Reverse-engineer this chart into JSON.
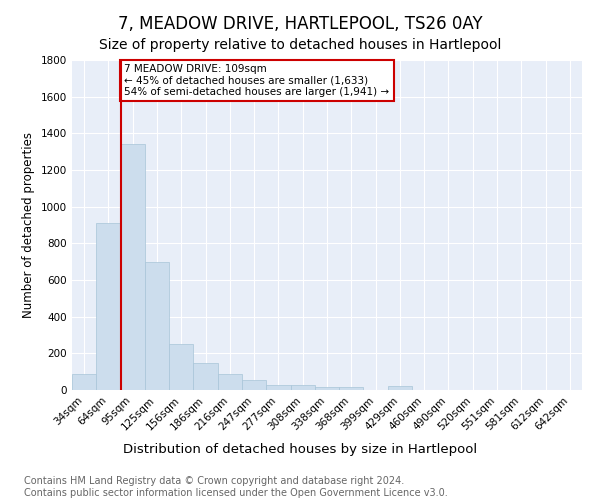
{
  "title": "7, MEADOW DRIVE, HARTLEPOOL, TS26 0AY",
  "subtitle": "Size of property relative to detached houses in Hartlepool",
  "xlabel": "Distribution of detached houses by size in Hartlepool",
  "ylabel": "Number of detached properties",
  "bar_labels": [
    "34sqm",
    "64sqm",
    "95sqm",
    "125sqm",
    "156sqm",
    "186sqm",
    "216sqm",
    "247sqm",
    "277sqm",
    "308sqm",
    "338sqm",
    "368sqm",
    "399sqm",
    "429sqm",
    "460sqm",
    "490sqm",
    "520sqm",
    "551sqm",
    "581sqm",
    "612sqm",
    "642sqm"
  ],
  "bar_heights": [
    90,
    910,
    1340,
    700,
    250,
    145,
    85,
    55,
    30,
    25,
    15,
    15,
    0,
    20,
    0,
    0,
    0,
    0,
    0,
    0,
    0
  ],
  "bar_color": "#ccdded",
  "bar_edge_color": "#a8c4d8",
  "red_line_color": "#cc0000",
  "annotation_text": "7 MEADOW DRIVE: 109sqm\n← 45% of detached houses are smaller (1,633)\n54% of semi-detached houses are larger (1,941) →",
  "annotation_box_color": "#ffffff",
  "annotation_box_edge": "#cc0000",
  "ylim": [
    0,
    1800
  ],
  "yticks": [
    0,
    200,
    400,
    600,
    800,
    1000,
    1200,
    1400,
    1600,
    1800
  ],
  "bg_color": "#e8eef8",
  "footer_text": "Contains HM Land Registry data © Crown copyright and database right 2024.\nContains public sector information licensed under the Open Government Licence v3.0.",
  "title_fontsize": 12,
  "subtitle_fontsize": 10,
  "xlabel_fontsize": 9.5,
  "ylabel_fontsize": 8.5,
  "footer_fontsize": 7,
  "tick_fontsize": 7.5,
  "annot_fontsize": 7.5
}
